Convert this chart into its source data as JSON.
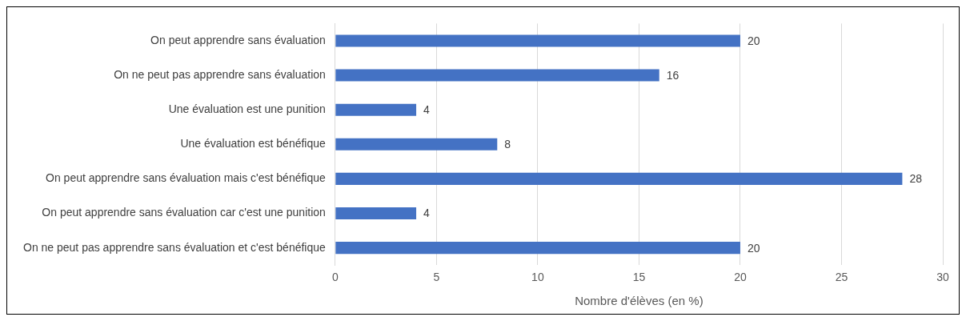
{
  "chart_data": {
    "type": "bar",
    "orientation": "horizontal",
    "categories": [
      "On peut apprendre sans évaluation",
      "On ne peut pas apprendre sans évaluation",
      "Une évaluation est une punition",
      "Une évaluation est bénéfique",
      "On peut apprendre sans évaluation mais c'est bénéfique",
      "On peut apprendre sans évaluation car c'est une punition",
      "On ne peut pas apprendre sans évaluation et c'est bénéfique"
    ],
    "values": [
      20,
      16,
      4,
      8,
      28,
      4,
      20
    ],
    "color": "#4472c4",
    "xlim": [
      0,
      30
    ],
    "xticks": [
      0,
      5,
      10,
      15,
      20,
      25,
      30
    ],
    "xlabel": "Nombre d'élèves (en %)",
    "grid": "x",
    "data_labels": true,
    "legend": false
  }
}
